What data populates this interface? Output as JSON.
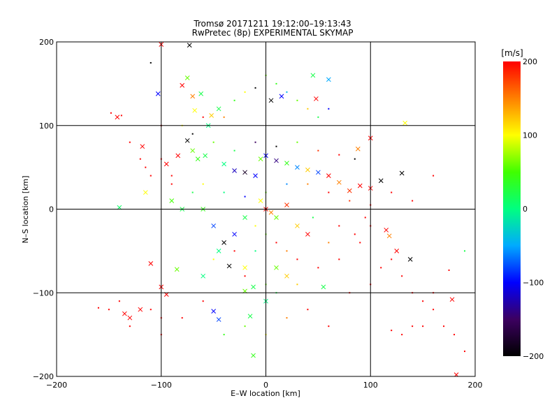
{
  "chart_data": {
    "type": "scatter",
    "title": "Tromsø 20171211 19:12:00–19:13:43",
    "subtitle": "RwPretec (8p) EXPERIMENTAL SKYMAP",
    "xlabel": "E–W location [km]",
    "ylabel": "N–S location [km]",
    "xlim": [
      -200,
      200
    ],
    "ylim": [
      -200,
      200
    ],
    "xticks": [
      -200,
      -100,
      0,
      100,
      200
    ],
    "yticks": [
      -200,
      -100,
      0,
      100,
      200
    ],
    "grid": true,
    "colorbar": {
      "label": "[m/s]",
      "min": -200,
      "max": 200,
      "ticks": [
        -200,
        -100,
        0,
        100,
        200
      ],
      "stops": [
        "#000000",
        "#3c0060",
        "#0000ff",
        "#00aaff",
        "#00ff80",
        "#40ff00",
        "#ffff00",
        "#ff8000",
        "#ff0000"
      ]
    },
    "series": [
      {
        "marker": "x",
        "points": [
          [
            -100,
            197,
            200
          ],
          [
            -73,
            196,
            -200
          ],
          [
            -75,
            157,
            60
          ],
          [
            -103,
            138,
            -100
          ],
          [
            -70,
            135,
            150
          ],
          [
            -62,
            138,
            20
          ],
          [
            -80,
            148,
            200
          ],
          [
            -68,
            118,
            100
          ],
          [
            -45,
            120,
            20
          ],
          [
            -52,
            112,
            120
          ],
          [
            -75,
            82,
            -200
          ],
          [
            -84,
            64,
            200
          ],
          [
            -95,
            54,
            200
          ],
          [
            -70,
            70,
            60
          ],
          [
            -65,
            60,
            40
          ],
          [
            -58,
            64,
            20
          ],
          [
            -40,
            54,
            0
          ],
          [
            -30,
            46,
            -120
          ],
          [
            -20,
            44,
            -180
          ],
          [
            -10,
            40,
            -100
          ],
          [
            -5,
            60,
            60
          ],
          [
            0,
            64,
            -100
          ],
          [
            10,
            58,
            -140
          ],
          [
            20,
            55,
            40
          ],
          [
            30,
            50,
            -60
          ],
          [
            40,
            47,
            120
          ],
          [
            50,
            44,
            -80
          ],
          [
            60,
            40,
            200
          ],
          [
            70,
            32,
            150
          ],
          [
            80,
            22,
            180
          ],
          [
            90,
            28,
            200
          ],
          [
            100,
            25,
            200
          ],
          [
            110,
            34,
            -200
          ],
          [
            130,
            43,
            -200
          ],
          [
            88,
            72,
            150
          ],
          [
            100,
            85,
            200
          ],
          [
            -140,
            2,
            10
          ],
          [
            -115,
            20,
            100
          ],
          [
            -90,
            10,
            50
          ],
          [
            -80,
            0,
            20
          ],
          [
            -50,
            -20,
            -80
          ],
          [
            -40,
            -40,
            -200
          ],
          [
            -30,
            -30,
            -100
          ],
          [
            -20,
            -10,
            20
          ],
          [
            0,
            0,
            200
          ],
          [
            5,
            -4,
            150
          ],
          [
            10,
            -10,
            60
          ],
          [
            -5,
            10,
            100
          ],
          [
            20,
            5,
            180
          ],
          [
            30,
            -20,
            120
          ],
          [
            40,
            -30,
            200
          ],
          [
            -110,
            -65,
            200
          ],
          [
            -85,
            -72,
            60
          ],
          [
            -60,
            -80,
            0
          ],
          [
            -45,
            -50,
            0
          ],
          [
            -35,
            -68,
            -200
          ],
          [
            -20,
            -70,
            100
          ],
          [
            -12,
            -93,
            20
          ],
          [
            10,
            -70,
            60
          ],
          [
            20,
            -80,
            120
          ],
          [
            55,
            -93,
            20
          ],
          [
            -100,
            -93,
            200
          ],
          [
            -95,
            -102,
            200
          ],
          [
            -135,
            -125,
            200
          ],
          [
            -120,
            -120,
            200
          ],
          [
            -130,
            -130,
            200
          ],
          [
            -50,
            -122,
            -100
          ],
          [
            -45,
            -132,
            -80
          ],
          [
            -20,
            -98,
            60
          ],
          [
            0,
            -110,
            0
          ],
          [
            -15,
            -128,
            20
          ],
          [
            -12,
            -175,
            40
          ],
          [
            115,
            -25,
            200
          ],
          [
            118,
            -32,
            150
          ],
          [
            125,
            -50,
            200
          ],
          [
            138,
            -60,
            -200
          ],
          [
            178,
            -108,
            200
          ],
          [
            182,
            -198,
            200
          ],
          [
            133,
            103,
            100
          ],
          [
            48,
            132,
            200
          ],
          [
            -142,
            110,
            200
          ],
          [
            -118,
            75,
            200
          ],
          [
            -55,
            100,
            0
          ],
          [
            -60,
            0,
            40
          ],
          [
            15,
            135,
            -100
          ],
          [
            5,
            130,
            -200
          ],
          [
            45,
            160,
            20
          ],
          [
            60,
            155,
            -50
          ]
        ]
      },
      {
        "marker": "dot",
        "points": [
          [
            -110,
            175,
            -200
          ],
          [
            -138,
            112,
            200
          ],
          [
            -148,
            115,
            200
          ],
          [
            -130,
            80,
            200
          ],
          [
            -120,
            60,
            200
          ],
          [
            -100,
            60,
            200
          ],
          [
            -90,
            40,
            200
          ],
          [
            -60,
            30,
            100
          ],
          [
            -40,
            20,
            0
          ],
          [
            -20,
            15,
            -100
          ],
          [
            0,
            20,
            60
          ],
          [
            20,
            30,
            -60
          ],
          [
            40,
            30,
            150
          ],
          [
            60,
            20,
            200
          ],
          [
            80,
            10,
            180
          ],
          [
            100,
            5,
            200
          ],
          [
            120,
            20,
            200
          ],
          [
            140,
            10,
            200
          ],
          [
            160,
            40,
            200
          ],
          [
            -140,
            -110,
            200
          ],
          [
            -150,
            -120,
            200
          ],
          [
            -160,
            -118,
            200
          ],
          [
            -130,
            -140,
            200
          ],
          [
            -110,
            -120,
            200
          ],
          [
            -100,
            -130,
            200
          ],
          [
            -100,
            -150,
            200
          ],
          [
            -80,
            -130,
            200
          ],
          [
            -60,
            -110,
            200
          ],
          [
            -40,
            -150,
            40
          ],
          [
            -20,
            -140,
            60
          ],
          [
            0,
            -150,
            100
          ],
          [
            20,
            -130,
            150
          ],
          [
            40,
            -120,
            200
          ],
          [
            60,
            -140,
            200
          ],
          [
            80,
            -100,
            200
          ],
          [
            100,
            -90,
            200
          ],
          [
            110,
            -70,
            200
          ],
          [
            120,
            -60,
            200
          ],
          [
            130,
            -80,
            200
          ],
          [
            140,
            -100,
            200
          ],
          [
            150,
            -110,
            200
          ],
          [
            160,
            -120,
            200
          ],
          [
            170,
            -140,
            200
          ],
          [
            180,
            -150,
            200
          ],
          [
            190,
            -170,
            200
          ],
          [
            160,
            -100,
            200
          ],
          [
            175,
            -73,
            200
          ],
          [
            190,
            -50,
            20
          ],
          [
            150,
            -140,
            200
          ],
          [
            140,
            -140,
            200
          ],
          [
            130,
            -150,
            200
          ],
          [
            120,
            -145,
            200
          ],
          [
            -20,
            140,
            100
          ],
          [
            -10,
            145,
            -200
          ],
          [
            10,
            150,
            40
          ],
          [
            20,
            140,
            -40
          ],
          [
            30,
            130,
            60
          ],
          [
            40,
            120,
            120
          ],
          [
            50,
            110,
            20
          ],
          [
            60,
            120,
            -100
          ],
          [
            0,
            160,
            60
          ],
          [
            -30,
            130,
            40
          ],
          [
            -40,
            110,
            150
          ],
          [
            -60,
            110,
            200
          ],
          [
            -80,
            100,
            100
          ],
          [
            -100,
            100,
            200
          ],
          [
            -70,
            90,
            -200
          ],
          [
            -50,
            80,
            60
          ],
          [
            -30,
            70,
            20
          ],
          [
            -10,
            80,
            -150
          ],
          [
            10,
            75,
            -200
          ],
          [
            30,
            80,
            60
          ],
          [
            50,
            70,
            180
          ],
          [
            70,
            65,
            200
          ],
          [
            85,
            60,
            -200
          ],
          [
            -10,
            -20,
            100
          ],
          [
            0,
            -30,
            60
          ],
          [
            10,
            -40,
            200
          ],
          [
            20,
            -50,
            150
          ],
          [
            30,
            -60,
            200
          ],
          [
            -10,
            -50,
            0
          ],
          [
            -30,
            -50,
            200
          ],
          [
            -50,
            -60,
            100
          ],
          [
            -20,
            -80,
            200
          ],
          [
            0,
            -90,
            60
          ],
          [
            10,
            -100,
            20
          ],
          [
            30,
            -90,
            120
          ],
          [
            50,
            -70,
            200
          ],
          [
            70,
            -60,
            200
          ],
          [
            90,
            -40,
            200
          ],
          [
            60,
            -40,
            150
          ],
          [
            45,
            -10,
            20
          ],
          [
            -70,
            20,
            20
          ],
          [
            -90,
            30,
            200
          ],
          [
            -110,
            40,
            200
          ],
          [
            -115,
            50,
            200
          ],
          [
            70,
            -20,
            200
          ],
          [
            85,
            -30,
            200
          ],
          [
            100,
            -20,
            200
          ],
          [
            95,
            -10,
            200
          ]
        ]
      }
    ]
  }
}
